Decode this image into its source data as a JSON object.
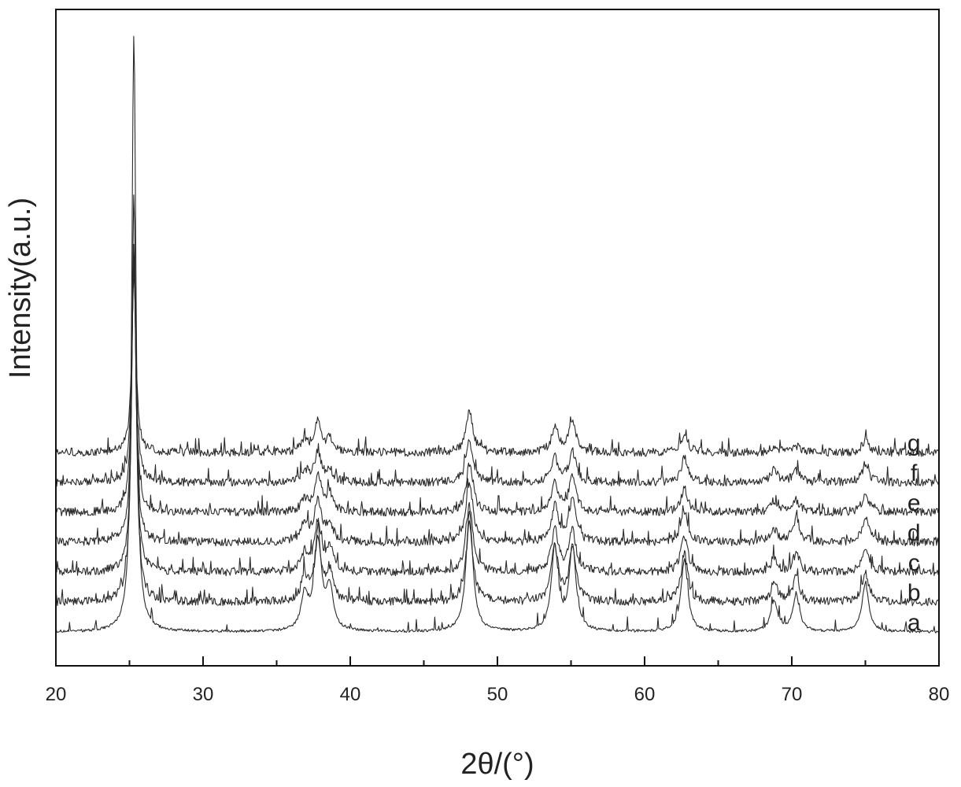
{
  "chart_data": {
    "type": "line",
    "title": "",
    "xlabel": "2θ/(°)",
    "ylabel": "Intensity(a.u.)",
    "xlim": [
      20,
      80
    ],
    "x_ticks": [
      20,
      30,
      40,
      50,
      60,
      70,
      80
    ],
    "x_minor_step": 5,
    "y_ticks_shown": false,
    "grid": false,
    "legend": "none",
    "line_color": "#2a2a2a",
    "stacked_offset": true,
    "series": [
      {
        "name": "a",
        "baseline": 0.0,
        "peaks": [
          [
            25.3,
            100
          ],
          [
            36.9,
            6
          ],
          [
            37.8,
            16
          ],
          [
            38.6,
            7
          ],
          [
            48.1,
            20
          ],
          [
            53.9,
            14
          ],
          [
            55.1,
            14
          ],
          [
            62.7,
            12
          ],
          [
            68.8,
            5
          ],
          [
            70.3,
            6
          ],
          [
            75.0,
            8
          ]
        ]
      },
      {
        "name": "b",
        "baseline": 5.0,
        "peaks": [
          [
            25.3,
            68
          ],
          [
            36.9,
            4
          ],
          [
            37.8,
            10
          ],
          [
            38.6,
            5
          ],
          [
            48.1,
            13
          ],
          [
            53.9,
            9
          ],
          [
            55.1,
            9
          ],
          [
            62.7,
            8
          ],
          [
            68.8,
            3
          ],
          [
            70.3,
            4
          ],
          [
            75.0,
            5
          ]
        ]
      },
      {
        "name": "c",
        "baseline": 10.0,
        "peaks": [
          [
            25.3,
            55
          ],
          [
            36.9,
            3
          ],
          [
            37.8,
            8
          ],
          [
            38.6,
            4
          ],
          [
            48.1,
            11
          ],
          [
            53.9,
            7
          ],
          [
            55.1,
            7
          ],
          [
            62.7,
            6
          ],
          [
            68.8,
            2
          ],
          [
            70.3,
            3
          ],
          [
            75.0,
            4
          ]
        ]
      },
      {
        "name": "d",
        "baseline": 15.0,
        "peaks": [
          [
            25.3,
            48
          ],
          [
            36.9,
            3
          ],
          [
            37.8,
            7
          ],
          [
            38.6,
            3
          ],
          [
            48.1,
            10
          ],
          [
            53.9,
            6
          ],
          [
            55.1,
            7
          ],
          [
            62.7,
            5
          ],
          [
            68.8,
            2
          ],
          [
            70.3,
            4
          ],
          [
            75.0,
            4
          ]
        ]
      },
      {
        "name": "e",
        "baseline": 20.0,
        "peaks": [
          [
            25.3,
            42
          ],
          [
            36.9,
            2
          ],
          [
            37.8,
            6
          ],
          [
            38.6,
            3
          ],
          [
            48.1,
            8
          ],
          [
            53.9,
            5
          ],
          [
            55.1,
            6
          ],
          [
            62.7,
            4
          ],
          [
            68.8,
            2
          ],
          [
            70.3,
            2
          ],
          [
            75.0,
            3
          ]
        ]
      },
      {
        "name": "f",
        "baseline": 25.0,
        "peaks": [
          [
            25.3,
            36
          ],
          [
            36.9,
            2
          ],
          [
            37.8,
            5
          ],
          [
            38.6,
            2
          ],
          [
            48.1,
            7
          ],
          [
            53.9,
            4
          ],
          [
            55.1,
            5
          ],
          [
            62.7,
            4
          ],
          [
            68.8,
            2
          ],
          [
            70.3,
            2
          ],
          [
            75.0,
            3
          ]
        ]
      },
      {
        "name": "g",
        "baseline": 30.0,
        "peaks": [
          [
            25.3,
            30
          ],
          [
            36.9,
            2
          ],
          [
            37.8,
            5
          ],
          [
            38.6,
            2
          ],
          [
            48.1,
            7
          ],
          [
            53.9,
            4
          ],
          [
            55.1,
            5
          ],
          [
            62.7,
            3
          ],
          [
            68.8,
            1
          ],
          [
            70.3,
            1
          ],
          [
            75.0,
            2
          ]
        ]
      }
    ]
  }
}
